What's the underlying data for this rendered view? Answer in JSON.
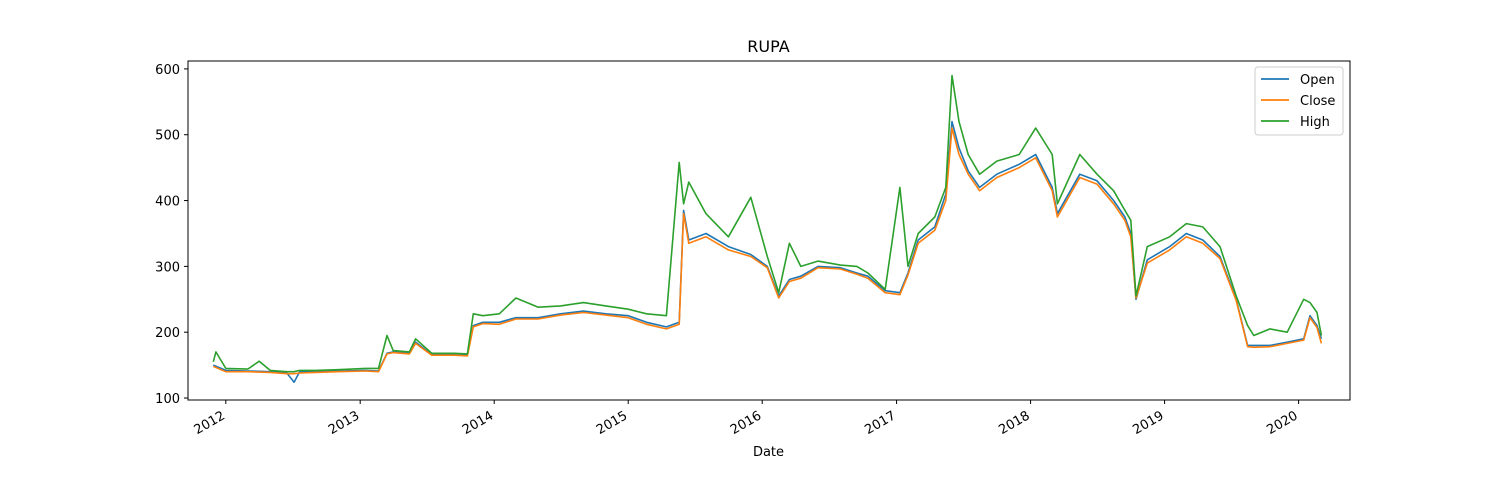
{
  "chart_data": {
    "type": "line",
    "title": "RUPA",
    "xlabel": "Date",
    "ylabel": "",
    "xlim": [
      "2011-09-20",
      "2020-05-20"
    ],
    "ylim": [
      97,
      612
    ],
    "yticks": [
      100,
      200,
      300,
      400,
      500,
      600
    ],
    "xticks": [
      "2012",
      "2013",
      "2014",
      "2015",
      "2016",
      "2017",
      "2018",
      "2019",
      "2020"
    ],
    "legend_position": "top-right",
    "grid": false,
    "series": [
      {
        "name": "Open",
        "color": "#1f77b4",
        "x": [
          "2011-11-28",
          "2012-01-01",
          "2012-03-01",
          "2012-05-01",
          "2012-06-15",
          "2012-07-05",
          "2012-07-20",
          "2012-09-01",
          "2012-11-01",
          "2013-01-15",
          "2013-02-20",
          "2013-03-15",
          "2013-04-01",
          "2013-05-15",
          "2013-06-01",
          "2013-07-15",
          "2013-09-15",
          "2013-10-20",
          "2013-11-05",
          "2013-12-01",
          "2014-01-15",
          "2014-03-01",
          "2014-05-01",
          "2014-07-01",
          "2014-09-01",
          "2014-11-01",
          "2015-01-01",
          "2015-02-20",
          "2015-04-15",
          "2015-05-20",
          "2015-06-01",
          "2015-06-15",
          "2015-08-01",
          "2015-10-01",
          "2015-12-01",
          "2016-01-15",
          "2016-02-15",
          "2016-03-15",
          "2016-04-15",
          "2016-06-01",
          "2016-08-01",
          "2016-09-15",
          "2016-10-15",
          "2016-12-01",
          "2017-01-10",
          "2017-02-01",
          "2017-03-01",
          "2017-04-15",
          "2017-05-15",
          "2017-06-01",
          "2017-06-20",
          "2017-07-15",
          "2017-08-15",
          "2017-10-01",
          "2017-12-01",
          "2018-01-15",
          "2018-03-01",
          "2018-03-15",
          "2018-05-15",
          "2018-07-01",
          "2018-08-15",
          "2018-09-15",
          "2018-10-01",
          "2018-10-15",
          "2018-11-15",
          "2019-01-15",
          "2019-03-01",
          "2019-04-15",
          "2019-06-01",
          "2019-07-15",
          "2019-08-15",
          "2019-09-01",
          "2019-10-15",
          "2019-12-01",
          "2020-01-15",
          "2020-02-01",
          "2020-02-20",
          "2020-03-03"
        ],
        "values": [
          150,
          142,
          141,
          140,
          138,
          124,
          140,
          140,
          141,
          142,
          141,
          168,
          170,
          168,
          185,
          166,
          166,
          165,
          210,
          215,
          215,
          222,
          222,
          228,
          232,
          228,
          225,
          215,
          208,
          215,
          385,
          340,
          350,
          330,
          318,
          300,
          255,
          280,
          285,
          300,
          298,
          290,
          285,
          263,
          260,
          290,
          340,
          360,
          410,
          520,
          480,
          445,
          420,
          440,
          455,
          470,
          420,
          380,
          440,
          430,
          400,
          375,
          350,
          250,
          310,
          330,
          350,
          340,
          315,
          250,
          180,
          180,
          180,
          185,
          190,
          225,
          210,
          190
        ]
      },
      {
        "name": "Close",
        "color": "#ff7f0e",
        "x": [
          "2011-11-28",
          "2012-01-01",
          "2012-03-01",
          "2012-05-01",
          "2012-06-15",
          "2012-07-05",
          "2012-07-20",
          "2012-09-01",
          "2012-11-01",
          "2013-01-15",
          "2013-02-20",
          "2013-03-15",
          "2013-04-01",
          "2013-05-15",
          "2013-06-01",
          "2013-07-15",
          "2013-09-15",
          "2013-10-20",
          "2013-11-05",
          "2013-12-01",
          "2014-01-15",
          "2014-03-01",
          "2014-05-01",
          "2014-07-01",
          "2014-09-01",
          "2014-11-01",
          "2015-01-01",
          "2015-02-20",
          "2015-04-15",
          "2015-05-20",
          "2015-06-01",
          "2015-06-15",
          "2015-08-01",
          "2015-10-01",
          "2015-12-01",
          "2016-01-15",
          "2016-02-15",
          "2016-03-15",
          "2016-04-15",
          "2016-06-01",
          "2016-08-01",
          "2016-09-15",
          "2016-10-15",
          "2016-12-01",
          "2017-01-10",
          "2017-02-01",
          "2017-03-01",
          "2017-04-15",
          "2017-05-15",
          "2017-06-01",
          "2017-06-20",
          "2017-07-15",
          "2017-08-15",
          "2017-10-01",
          "2017-12-01",
          "2018-01-15",
          "2018-03-01",
          "2018-03-15",
          "2018-05-15",
          "2018-07-01",
          "2018-08-15",
          "2018-09-15",
          "2018-10-01",
          "2018-10-15",
          "2018-11-15",
          "2019-01-15",
          "2019-03-01",
          "2019-04-15",
          "2019-06-01",
          "2019-07-15",
          "2019-08-15",
          "2019-09-01",
          "2019-10-15",
          "2019-12-01",
          "2020-01-15",
          "2020-02-01",
          "2020-02-20",
          "2020-03-03"
        ],
        "values": [
          148,
          140,
          140,
          139,
          137,
          137,
          138,
          139,
          140,
          141,
          140,
          167,
          169,
          167,
          183,
          165,
          165,
          164,
          208,
          213,
          212,
          220,
          220,
          226,
          230,
          226,
          222,
          212,
          205,
          212,
          380,
          335,
          345,
          325,
          315,
          298,
          252,
          277,
          282,
          298,
          296,
          288,
          282,
          260,
          257,
          287,
          335,
          355,
          400,
          510,
          470,
          440,
          415,
          435,
          450,
          465,
          415,
          375,
          435,
          425,
          395,
          370,
          345,
          252,
          305,
          325,
          345,
          335,
          312,
          248,
          178,
          177,
          178,
          183,
          188,
          222,
          207,
          183
        ]
      },
      {
        "name": "High",
        "color": "#2ca02c",
        "x": [
          "2011-11-28",
          "2011-12-05",
          "2012-01-01",
          "2012-03-01",
          "2012-04-01",
          "2012-05-01",
          "2012-06-15",
          "2012-07-05",
          "2012-07-20",
          "2012-09-01",
          "2012-11-01",
          "2013-01-15",
          "2013-02-20",
          "2013-03-15",
          "2013-04-01",
          "2013-05-15",
          "2013-06-01",
          "2013-07-15",
          "2013-09-15",
          "2013-10-20",
          "2013-11-05",
          "2013-12-01",
          "2014-01-15",
          "2014-03-01",
          "2014-05-01",
          "2014-07-01",
          "2014-09-01",
          "2014-11-01",
          "2015-01-01",
          "2015-02-20",
          "2015-04-15",
          "2015-05-20",
          "2015-06-01",
          "2015-06-15",
          "2015-08-01",
          "2015-10-01",
          "2015-12-01",
          "2016-01-15",
          "2016-02-15",
          "2016-03-15",
          "2016-04-15",
          "2016-06-01",
          "2016-08-01",
          "2016-09-15",
          "2016-10-15",
          "2016-12-01",
          "2017-01-10",
          "2017-02-01",
          "2017-03-01",
          "2017-04-15",
          "2017-05-15",
          "2017-06-01",
          "2017-06-20",
          "2017-07-15",
          "2017-08-15",
          "2017-10-01",
          "2017-12-01",
          "2018-01-15",
          "2018-03-01",
          "2018-03-15",
          "2018-05-15",
          "2018-07-01",
          "2018-08-15",
          "2018-09-15",
          "2018-10-01",
          "2018-10-15",
          "2018-11-15",
          "2019-01-15",
          "2019-03-01",
          "2019-04-15",
          "2019-06-01",
          "2019-07-15",
          "2019-08-15",
          "2019-09-01",
          "2019-10-15",
          "2019-12-01",
          "2020-01-15",
          "2020-02-01",
          "2020-02-20",
          "2020-03-03"
        ],
        "values": [
          155,
          170,
          145,
          144,
          156,
          142,
          140,
          140,
          142,
          142,
          143,
          145,
          145,
          195,
          172,
          170,
          190,
          168,
          168,
          167,
          228,
          225,
          228,
          252,
          238,
          240,
          245,
          240,
          235,
          228,
          225,
          458,
          395,
          428,
          380,
          345,
          405,
          315,
          260,
          335,
          300,
          308,
          302,
          300,
          290,
          265,
          420,
          300,
          350,
          375,
          420,
          590,
          520,
          470,
          440,
          460,
          470,
          510,
          470,
          395,
          470,
          440,
          415,
          385,
          370,
          255,
          330,
          345,
          365,
          360,
          330,
          255,
          210,
          195,
          205,
          200,
          250,
          245,
          230,
          195
        ]
      }
    ]
  }
}
